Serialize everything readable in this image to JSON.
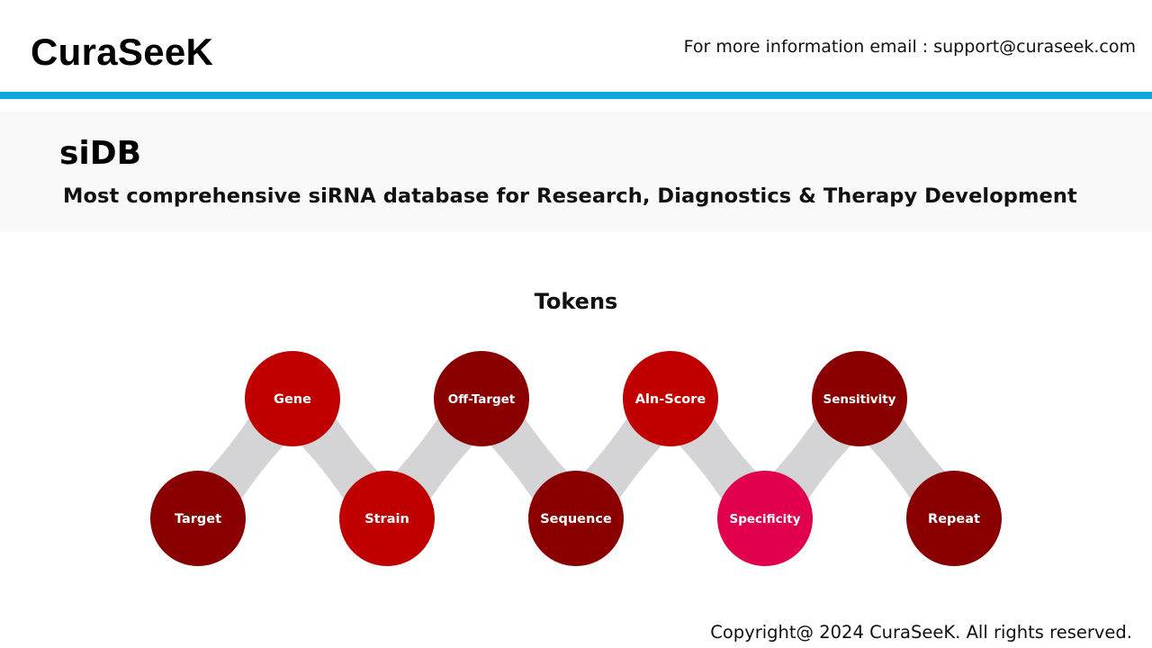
{
  "header": {
    "brand": "CuraSeeK",
    "contact": "For more information email : support@curaseek.com",
    "accent_color": "#10a6dd"
  },
  "banner": {
    "title": "siDB",
    "subtitle": "Most comprehensive siRNA database for Research, Diagnostics & Therapy Development"
  },
  "diagram": {
    "title": "Tokens",
    "connector_color": "#d4d4d6",
    "tokens": [
      {
        "label": "Target",
        "row": "bottom",
        "color": "#8a0000"
      },
      {
        "label": "Gene",
        "row": "top",
        "color": "#c00000"
      },
      {
        "label": "Strain",
        "row": "bottom",
        "color": "#c00000"
      },
      {
        "label": "Off-Target",
        "row": "top",
        "color": "#8a0000"
      },
      {
        "label": "Sequence",
        "row": "bottom",
        "color": "#8a0000"
      },
      {
        "label": "Aln-Score",
        "row": "top",
        "color": "#c00000"
      },
      {
        "label": "Specificity",
        "row": "bottom",
        "color": "#e0004d"
      },
      {
        "label": "Sensitivity",
        "row": "top",
        "color": "#8a0000"
      },
      {
        "label": "Repeat",
        "row": "bottom",
        "color": "#8a0000"
      }
    ]
  },
  "footer": {
    "copyright": "Copyright@ 2024 CuraSeeK. All rights reserved."
  }
}
